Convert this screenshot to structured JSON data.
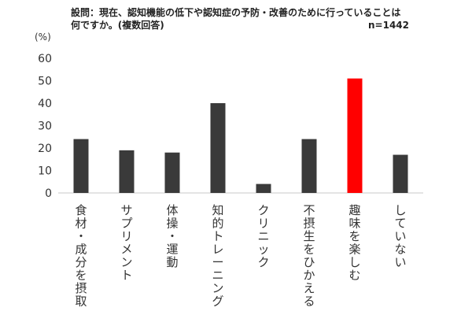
{
  "chart_data": {
    "type": "bar",
    "title": "設問：現在、認知機能の低下や認知症の予防・改善のために行っていることは\n何ですか。(複数回答)",
    "sample_size": "n=1442",
    "ylabel": "(%)",
    "xlabel": "",
    "ylim": [
      0,
      60
    ],
    "yticks": [
      0,
      10,
      20,
      30,
      40,
      50,
      60
    ],
    "grid": false,
    "categories": [
      "食材・成分を摂取",
      "サプリメント",
      "体操・運動",
      "知的トレーニング",
      "クリニック",
      "不摂生をひかえる",
      "趣味を楽しむ",
      "していない"
    ],
    "values": [
      24,
      19,
      18,
      40,
      4,
      24,
      51,
      17
    ],
    "colors": {
      "default": "#3a3a3a",
      "highlight": "#ff0000",
      "axis": "#c8c8c8"
    },
    "highlight_index": 6
  }
}
